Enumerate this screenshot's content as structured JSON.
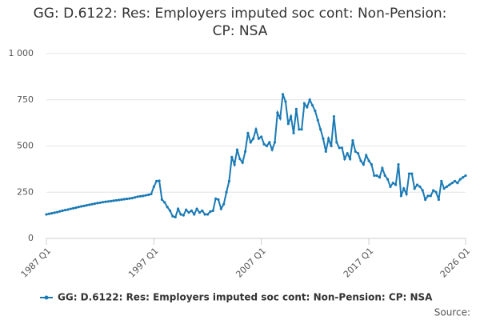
{
  "chart_data": {
    "type": "line",
    "title": "GG: D.6122: Res: Employers imputed soc cont: Non-Pension: CP: NSA",
    "source": "Source:",
    "categories": [
      "1987 Q1",
      null,
      null,
      null,
      null,
      null,
      null,
      null,
      null,
      null,
      null,
      null,
      null,
      null,
      null,
      null,
      null,
      null,
      null,
      null,
      null,
      null,
      null,
      null,
      null,
      null,
      null,
      null,
      null,
      null,
      null,
      null,
      null,
      null,
      null,
      null,
      null,
      null,
      null,
      null,
      "1997 Q1",
      null,
      null,
      null,
      null,
      null,
      null,
      null,
      null,
      null,
      null,
      null,
      null,
      null,
      null,
      null,
      null,
      null,
      null,
      null,
      null,
      null,
      null,
      null,
      null,
      null,
      null,
      null,
      null,
      null,
      null,
      null,
      null,
      null,
      null,
      null,
      null,
      null,
      null,
      null,
      "2007 Q1",
      null,
      null,
      null,
      null,
      null,
      null,
      null,
      null,
      null,
      null,
      null,
      null,
      null,
      null,
      null,
      null,
      null,
      null,
      null,
      null,
      null,
      null,
      null,
      null,
      null,
      null,
      null,
      null,
      null,
      null,
      null,
      null,
      null,
      null,
      null,
      null,
      null,
      null,
      null,
      "2017 Q1",
      null,
      null,
      null,
      null,
      null,
      null,
      null,
      null,
      null,
      null,
      null,
      null,
      null,
      null,
      null,
      null,
      null,
      null,
      null,
      null,
      null,
      null,
      null,
      null,
      null,
      null,
      null,
      null,
      null,
      null,
      null,
      null,
      null,
      null,
      null,
      "2026 Q1"
    ],
    "series": [
      {
        "name": "GG: D.6122: Res: Employers imputed soc cont: Non-Pension: CP: NSA",
        "color": "#1a7ab5",
        "values": [
          130,
          133,
          136,
          139,
          142,
          146,
          150,
          153,
          156,
          160,
          163,
          166,
          170,
          173,
          176,
          179,
          182,
          185,
          188,
          191,
          193,
          196,
          198,
          200,
          202,
          204,
          206,
          208,
          210,
          212,
          214,
          216,
          218,
          222,
          226,
          228,
          230,
          233,
          236,
          240,
          280,
          310,
          312,
          210,
          195,
          170,
          150,
          120,
          115,
          160,
          130,
          125,
          155,
          140,
          150,
          130,
          160,
          140,
          150,
          130,
          130,
          145,
          150,
          215,
          210,
          160,
          185,
          250,
          310,
          440,
          400,
          480,
          430,
          410,
          470,
          570,
          520,
          540,
          590,
          540,
          550,
          510,
          500,
          520,
          480,
          520,
          680,
          650,
          780,
          740,
          620,
          660,
          570,
          700,
          590,
          590,
          730,
          710,
          750,
          720,
          690,
          640,
          590,
          540,
          470,
          540,
          500,
          660,
          520,
          490,
          490,
          430,
          460,
          430,
          530,
          470,
          460,
          420,
          400,
          450,
          420,
          400,
          340,
          340,
          330,
          380,
          340,
          320,
          280,
          300,
          290,
          400,
          230,
          270,
          240,
          350,
          350,
          270,
          290,
          280,
          260,
          210,
          230,
          230,
          260,
          250,
          210,
          310,
          270,
          280,
          290,
          300,
          310,
          300,
          320,
          330,
          340
        ]
      }
    ],
    "ylim": [
      0,
      1000
    ],
    "yticks": [
      0,
      250,
      500,
      750,
      {
        "value": 1000,
        "label": "1 000"
      }
    ],
    "grid": true
  }
}
